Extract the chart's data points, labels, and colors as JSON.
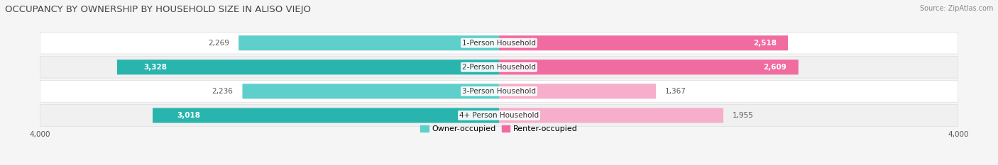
{
  "title": "OCCUPANCY BY OWNERSHIP BY HOUSEHOLD SIZE IN ALISO VIEJO",
  "source": "Source: ZipAtlas.com",
  "categories": [
    "1-Person Household",
    "2-Person Household",
    "3-Person Household",
    "4+ Person Household"
  ],
  "owner_values": [
    2269,
    3328,
    2236,
    3018
  ],
  "renter_values": [
    2518,
    2609,
    1367,
    1955
  ],
  "owner_colors": [
    "#5ECFCA",
    "#29B5AE",
    "#5ECFCA",
    "#29B5AE"
  ],
  "renter_colors": [
    "#F06CA0",
    "#F06CA0",
    "#F7AECA",
    "#F7AECA"
  ],
  "max_val": 4000,
  "bg_color": "#F5F5F5",
  "row_bg_colors": [
    "#FFFFFF",
    "#F0F0F0",
    "#FFFFFF",
    "#F0F0F0"
  ],
  "title_fontsize": 9.5,
  "label_fontsize": 7.5,
  "tick_fontsize": 7.5,
  "legend_fontsize": 8,
  "source_fontsize": 7,
  "owner_label_color_dark": "#FFFFFF",
  "owner_label_color_light": "#555555",
  "renter_label_color_dark": "#FFFFFF",
  "renter_label_color_light": "#555555"
}
